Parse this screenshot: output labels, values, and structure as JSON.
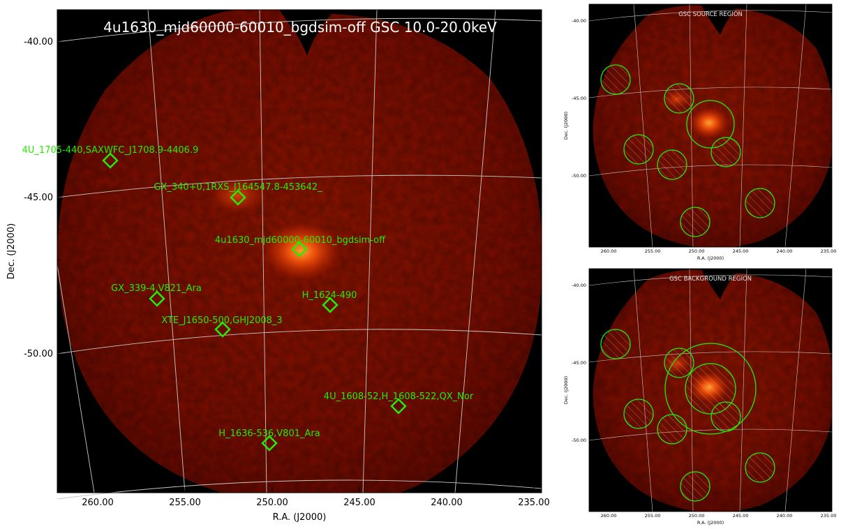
{
  "main_title": "4u1630_mjd60000-60010_bgdsim-off GSC 10.0-20.0keV",
  "main": {
    "dec_ticks": [
      "-40.00",
      "-45.00",
      "-50.00"
    ],
    "ra_ticks": [
      "260.00",
      "255.00",
      "250.00",
      "245.00",
      "240.00",
      "235.00"
    ],
    "xlabel": "R.A. (J2000)",
    "ylabel": "Dec. (J2000)"
  },
  "sources": [
    {
      "label": "4U_1705-440,SAXWFC_J1708.9-4406.9"
    },
    {
      "label": "GX_340+0,1RXS_J164547.8-453642_"
    },
    {
      "label": "4u1630_mjd60000-60010_bgdsim-off"
    },
    {
      "label": "GX_339-4,V821_Ara"
    },
    {
      "label": "H_1624-490"
    },
    {
      "label": "XTE_J1650-500,GHJ2008_3"
    },
    {
      "label": "4U_1608-52,H_1608-522,QX_Nor"
    },
    {
      "label": "H_1636-536,V801_Ara"
    }
  ],
  "source_panel": {
    "title": "GSC SOURCE REGION",
    "dec_ticks": [
      "-40.00",
      "-45.00",
      "-50.00"
    ],
    "ra_ticks": [
      "260.00",
      "255.00",
      "250.00",
      "245.00",
      "240.00",
      "235.00"
    ],
    "xlabel": "R.A. (J2000)",
    "ylabel": "Dec. (J2000)"
  },
  "background_panel": {
    "title": "GSC BACKGROUND REGION",
    "dec_ticks": [
      "-40.00",
      "-45.00",
      "-50.00"
    ],
    "ra_ticks": [
      "260.00",
      "255.00",
      "250.00",
      "245.00",
      "240.00",
      "235.00"
    ],
    "xlabel": "R.A. (J2000)",
    "ylabel": "Dec. (J2000)"
  },
  "colors": {
    "background": "#000000",
    "image_base": "#7a0d00",
    "hotspot": "#ff8a1a",
    "region": "#22ee00",
    "grid": "#c8c8c8"
  }
}
